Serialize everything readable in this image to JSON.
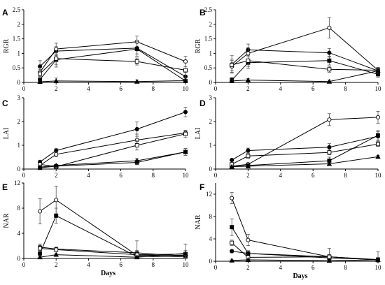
{
  "figure": {
    "x_caption": "Days",
    "legend": [
      {
        "marker": "filled-circle"
      },
      {
        "marker": "open-circle"
      },
      {
        "marker": "filled-square"
      },
      {
        "marker": "open-square"
      },
      {
        "marker": "filled-triangle"
      }
    ]
  },
  "chart_data": [
    {
      "panel": "A",
      "type": "line",
      "ylabel": "RGR",
      "xlim": [
        0,
        10
      ],
      "ylim": [
        0,
        2.5
      ],
      "xticks": [
        0,
        2,
        4,
        6,
        8,
        10
      ],
      "yticks": [
        0,
        0.5,
        1,
        1.5,
        2,
        2.5
      ],
      "ytick_labels": [
        "0",
        "0.5",
        "1",
        "1.5",
        "2",
        "2.5"
      ],
      "x": [
        1,
        2,
        7,
        10
      ],
      "series": [
        {
          "marker": "filled-circle",
          "values": [
            0.55,
            1.08,
            1.18,
            0.2
          ],
          "errors": [
            0.2,
            0.15,
            0.2,
            0.15
          ]
        },
        {
          "marker": "open-circle",
          "values": [
            0.35,
            1.15,
            1.4,
            0.72
          ],
          "errors": [
            0.15,
            0.2,
            0.2,
            0.18
          ]
        },
        {
          "marker": "filled-square",
          "values": [
            0.1,
            0.78,
            1.15,
            0.05
          ],
          "errors": [
            0.1,
            0.25,
            0.25,
            0.05
          ]
        },
        {
          "marker": "open-square",
          "values": [
            0.3,
            0.82,
            0.72,
            0.42
          ],
          "errors": [
            0.15,
            0.2,
            0.12,
            0.25
          ]
        },
        {
          "marker": "filled-triangle",
          "values": [
            0.02,
            0.05,
            0.03,
            0.06
          ],
          "errors": [
            0.05,
            0.1,
            0.05,
            0.05
          ]
        }
      ]
    },
    {
      "panel": "B",
      "type": "line",
      "ylabel": "RGR",
      "xlim": [
        0,
        10
      ],
      "ylim": [
        0,
        2.5
      ],
      "xticks": [
        0,
        2,
        4,
        6,
        8,
        10
      ],
      "yticks": [
        0,
        0.5,
        1,
        1.5,
        2,
        2.5
      ],
      "ytick_labels": [
        "0",
        "0.5",
        "1",
        "1.5",
        "2",
        "2.5"
      ],
      "x": [
        1,
        2,
        7,
        10
      ],
      "series": [
        {
          "marker": "filled-circle",
          "values": [
            0.62,
            1.12,
            1.02,
            0.4
          ],
          "errors": [
            0.3,
            0.2,
            0.15,
            0.1
          ]
        },
        {
          "marker": "open-circle",
          "values": [
            0.55,
            1.0,
            1.88,
            0.42
          ],
          "errors": [
            0.2,
            0.2,
            0.35,
            0.1
          ]
        },
        {
          "marker": "filled-square",
          "values": [
            0.08,
            0.68,
            0.75,
            0.28
          ],
          "errors": [
            0.1,
            0.2,
            0.15,
            0.1
          ]
        },
        {
          "marker": "open-square",
          "values": [
            0.6,
            0.75,
            0.45,
            0.42
          ],
          "errors": [
            0.2,
            0.2,
            0.1,
            0.1
          ]
        },
        {
          "marker": "filled-triangle",
          "values": [
            0.05,
            0.08,
            0.03,
            0.4
          ],
          "errors": [
            0.05,
            0.05,
            0.05,
            0.05
          ]
        }
      ]
    },
    {
      "panel": "C",
      "type": "line",
      "ylabel": "LAI",
      "xlim": [
        0,
        10
      ],
      "ylim": [
        0,
        3
      ],
      "xticks": [
        0,
        2,
        4,
        6,
        8,
        10
      ],
      "yticks": [
        0,
        1,
        2,
        3
      ],
      "ytick_labels": [
        "0",
        "1",
        "2",
        "3"
      ],
      "x": [
        1,
        2,
        7,
        10
      ],
      "series": [
        {
          "marker": "filled-circle",
          "values": [
            0.3,
            0.78,
            1.68,
            2.4
          ],
          "errors": [
            0.05,
            0.08,
            0.3,
            0.2
          ]
        },
        {
          "marker": "open-circle",
          "values": [
            0.15,
            0.62,
            1.22,
            1.52
          ],
          "errors": [
            0.05,
            0.1,
            0.25,
            0.1
          ]
        },
        {
          "marker": "filled-square",
          "values": [
            0.05,
            0.12,
            0.28,
            0.72
          ],
          "errors": [
            0.03,
            0.05,
            0.1,
            0.15
          ]
        },
        {
          "marker": "open-square",
          "values": [
            0.2,
            0.1,
            1.0,
            1.48
          ],
          "errors": [
            0.05,
            0.05,
            0.2,
            0.15
          ]
        },
        {
          "marker": "filled-triangle",
          "values": [
            0.08,
            0.15,
            0.35,
            0.72
          ],
          "errors": [
            0.03,
            0.05,
            0.1,
            0.15
          ]
        }
      ]
    },
    {
      "panel": "D",
      "type": "line",
      "ylabel": "LAI",
      "xlim": [
        0,
        10
      ],
      "ylim": [
        0,
        3
      ],
      "xticks": [
        0,
        2,
        4,
        6,
        8,
        10
      ],
      "yticks": [
        0,
        1,
        2,
        3
      ],
      "ytick_labels": [
        "0",
        "1",
        "2",
        "3"
      ],
      "x": [
        1,
        2,
        7,
        10
      ],
      "series": [
        {
          "marker": "filled-circle",
          "values": [
            0.38,
            0.78,
            0.92,
            1.38
          ],
          "errors": [
            0.05,
            0.1,
            0.15,
            0.2
          ]
        },
        {
          "marker": "open-circle",
          "values": [
            0.12,
            0.2,
            2.08,
            2.18
          ],
          "errors": [
            0.05,
            0.05,
            0.25,
            0.25
          ]
        },
        {
          "marker": "filled-square",
          "values": [
            0.1,
            0.15,
            0.35,
            1.42
          ],
          "errors": [
            0.03,
            0.05,
            0.15,
            0.2
          ]
        },
        {
          "marker": "open-square",
          "values": [
            0.2,
            0.55,
            0.7,
            1.05
          ],
          "errors": [
            0.05,
            0.1,
            0.1,
            0.1
          ]
        },
        {
          "marker": "filled-triangle",
          "values": [
            0.1,
            0.12,
            0.22,
            0.52
          ],
          "errors": [
            0.03,
            0.03,
            0.05,
            0.05
          ]
        }
      ]
    },
    {
      "panel": "E",
      "type": "line",
      "ylabel": "NAR",
      "xlim": [
        0,
        10
      ],
      "ylim": [
        0,
        12
      ],
      "xticks": [
        0,
        2,
        4,
        6,
        8,
        10
      ],
      "yticks": [
        0,
        4,
        8,
        12
      ],
      "ytick_labels": [
        "0",
        "4",
        "8",
        "12"
      ],
      "x": [
        1,
        2,
        7,
        10
      ],
      "series": [
        {
          "marker": "filled-circle",
          "values": [
            1.8,
            1.5,
            0.9,
            0.3
          ],
          "errors": [
            0.5,
            0.3,
            0.4,
            0.3
          ]
        },
        {
          "marker": "open-circle",
          "values": [
            7.5,
            9.3,
            0.5,
            0.5
          ],
          "errors": [
            2.0,
            2.2,
            0.6,
            0.5
          ]
        },
        {
          "marker": "filled-square",
          "values": [
            0.8,
            6.8,
            0.3,
            0.3
          ],
          "errors": [
            0.6,
            1.2,
            2.5,
            0.3
          ]
        },
        {
          "marker": "open-square",
          "values": [
            1.6,
            1.4,
            0.6,
            0.7
          ],
          "errors": [
            0.5,
            0.3,
            0.5,
            0.6
          ]
        },
        {
          "marker": "filled-triangle",
          "values": [
            0.2,
            0.6,
            0.2,
            0.8
          ],
          "errors": [
            0.2,
            0.2,
            0.2,
            1.5
          ]
        }
      ]
    },
    {
      "panel": "F",
      "type": "line",
      "ylabel": "NAR",
      "xlim": [
        0,
        10
      ],
      "ylim": [
        0,
        14
      ],
      "xticks": [
        0,
        2,
        4,
        6,
        8,
        10
      ],
      "yticks": [
        0,
        4,
        8,
        12
      ],
      "ytick_labels": [
        "0",
        "4",
        "8",
        "12"
      ],
      "x": [
        1,
        2,
        7,
        10
      ],
      "series": [
        {
          "marker": "filled-circle",
          "values": [
            1.8,
            1.4,
            0.8,
            0.2
          ],
          "errors": [
            0.3,
            0.2,
            0.3,
            0.2
          ]
        },
        {
          "marker": "open-circle",
          "values": [
            11.3,
            3.8,
            0.8,
            0.3
          ],
          "errors": [
            1.0,
            1.0,
            1.5,
            0.3
          ]
        },
        {
          "marker": "filled-square",
          "values": [
            6.1,
            1.4,
            0.6,
            0.3
          ],
          "errors": [
            1.5,
            0.5,
            0.5,
            0.3
          ]
        },
        {
          "marker": "open-square",
          "values": [
            3.3,
            0.7,
            0.8,
            0.2
          ],
          "errors": [
            0.5,
            0.3,
            0.4,
            1.5
          ]
        },
        {
          "marker": "filled-triangle",
          "values": [
            0.15,
            0.25,
            0.1,
            0.25
          ],
          "errors": [
            0.1,
            0.1,
            0.1,
            0.2
          ]
        }
      ]
    }
  ]
}
